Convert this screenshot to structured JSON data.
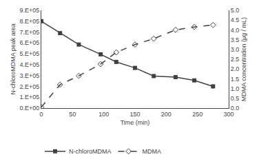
{
  "chart_data": {
    "type": "line",
    "xlabel": "Time (min)",
    "ylabel": "N-chloroMDMA peak area",
    "y2label": "MDMA concentration (μg / mL)",
    "x": [
      0,
      30,
      60,
      95,
      120,
      150,
      180,
      215,
      245,
      275
    ],
    "series": [
      {
        "name": "N-chloroMDMA",
        "color": "#404040",
        "marker": "square",
        "line_style": "solid",
        "axis": "y",
        "values": [
          800000,
          690000,
          585000,
          495000,
          425000,
          370000,
          295000,
          285000,
          255000,
          200000
        ]
      },
      {
        "name": "MDMA",
        "color": "#404040",
        "marker": "diamond-open",
        "line_style": "dash",
        "axis": "y2",
        "values": [
          0.05,
          1.2,
          1.65,
          2.25,
          2.85,
          3.25,
          3.55,
          4.0,
          4.15,
          4.25
        ]
      }
    ],
    "xlim": [
      0,
      300
    ],
    "xticks": [
      0,
      50,
      100,
      150,
      200,
      250,
      300
    ],
    "ylim": [
      0,
      900000
    ],
    "yticks": [
      {
        "value": 0,
        "label": "0.E+00"
      },
      {
        "value": 100000,
        "label": "1.E+05"
      },
      {
        "value": 200000,
        "label": "2.E+05"
      },
      {
        "value": 300000,
        "label": "3.E+05"
      },
      {
        "value": 400000,
        "label": "4.E+05"
      },
      {
        "value": 500000,
        "label": "5.E+05"
      },
      {
        "value": 600000,
        "label": "6.E+05"
      },
      {
        "value": 700000,
        "label": "7.E+05"
      },
      {
        "value": 800000,
        "label": "8.E+05"
      },
      {
        "value": 900000,
        "label": "9.E+05"
      }
    ],
    "y2lim": [
      0,
      5.0
    ],
    "y2ticks": [
      {
        "value": 0,
        "label": "0.0"
      },
      0.5,
      {
        "value": 1,
        "label": "1.0"
      },
      1.5,
      {
        "value": 2,
        "label": "2.0"
      },
      2.5,
      {
        "value": 3,
        "label": "3.0"
      },
      3.5,
      {
        "value": 4,
        "label": "4.0"
      },
      4.5,
      {
        "value": 5,
        "label": "5.0"
      }
    ],
    "grid": false,
    "legend": "bottom"
  }
}
